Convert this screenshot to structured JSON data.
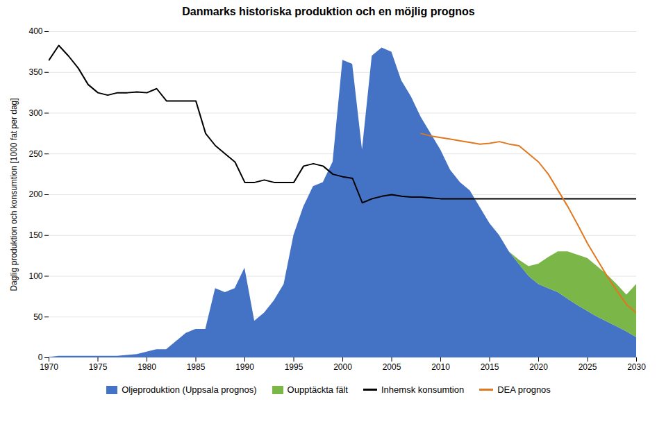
{
  "chart_data": {
    "type": "area",
    "title": "Danmarks historiska produktion och en möjlig prognos",
    "ylabel": "Daglig produktion och konsumtion [1000 fat per dag]",
    "x": [
      1970,
      1971,
      1972,
      1973,
      1974,
      1975,
      1976,
      1977,
      1978,
      1979,
      1980,
      1981,
      1982,
      1983,
      1984,
      1985,
      1986,
      1987,
      1988,
      1989,
      1990,
      1991,
      1992,
      1993,
      1994,
      1995,
      1996,
      1997,
      1998,
      1999,
      2000,
      2001,
      2002,
      2003,
      2004,
      2005,
      2006,
      2007,
      2008,
      2009,
      2010,
      2011,
      2012,
      2013,
      2014,
      2015,
      2016,
      2017,
      2018,
      2019,
      2020,
      2021,
      2022,
      2023,
      2024,
      2025,
      2026,
      2027,
      2028,
      2029,
      2030
    ],
    "xlim": [
      1970,
      2030
    ],
    "xticks": [
      1970,
      1975,
      1980,
      1985,
      1990,
      1995,
      2000,
      2005,
      2010,
      2015,
      2020,
      2025,
      2030
    ],
    "ylim": [
      0,
      400
    ],
    "yticks": [
      0,
      50,
      100,
      150,
      200,
      250,
      300,
      350,
      400
    ],
    "grid": true,
    "legend": "bottom",
    "stacked": true,
    "series": [
      {
        "name": "Oljeproduktion (Uppsala prognos)",
        "type": "area",
        "color": "#4472C4",
        "values": [
          0.5,
          2,
          2,
          2,
          2,
          2,
          2,
          2,
          3,
          4,
          7,
          10,
          10,
          20,
          30,
          35,
          35,
          85,
          80,
          85,
          110,
          45,
          55,
          70,
          90,
          150,
          185,
          210,
          215,
          240,
          365,
          360,
          255,
          370,
          380,
          375,
          340,
          320,
          295,
          275,
          255,
          230,
          215,
          205,
          185,
          165,
          150,
          130,
          115,
          100,
          90,
          85,
          80,
          72,
          64,
          57,
          50,
          44,
          38,
          32,
          25
        ]
      },
      {
        "name": "Oupptäckta fält",
        "type": "area",
        "color": "#7AB648",
        "values": [
          null,
          null,
          null,
          null,
          null,
          null,
          null,
          null,
          null,
          null,
          null,
          null,
          null,
          null,
          null,
          null,
          null,
          null,
          null,
          null,
          null,
          null,
          null,
          null,
          null,
          null,
          null,
          null,
          null,
          null,
          null,
          null,
          null,
          null,
          null,
          null,
          null,
          null,
          null,
          null,
          null,
          null,
          null,
          null,
          null,
          null,
          null,
          0,
          5,
          12,
          25,
          38,
          50,
          58,
          62,
          65,
          62,
          58,
          52,
          45,
          65
        ]
      },
      {
        "name": "Inhemsk konsumtion",
        "type": "line",
        "color": "#000000",
        "values": [
          365,
          383,
          370,
          355,
          335,
          325,
          322,
          325,
          325,
          326,
          325,
          330,
          315,
          315,
          315,
          315,
          275,
          260,
          250,
          240,
          215,
          215,
          218,
          215,
          215,
          215,
          235,
          238,
          235,
          225,
          222,
          220,
          190,
          195,
          198,
          200,
          198,
          197,
          197,
          196,
          195,
          195,
          195,
          195,
          195,
          195,
          195,
          195,
          195,
          195,
          195,
          195,
          195,
          195,
          195,
          195,
          195,
          195,
          195,
          195,
          195
        ]
      },
      {
        "name": "DEA prognos",
        "type": "line",
        "color": "#E07820",
        "values": [
          null,
          null,
          null,
          null,
          null,
          null,
          null,
          null,
          null,
          null,
          null,
          null,
          null,
          null,
          null,
          null,
          null,
          null,
          null,
          null,
          null,
          null,
          null,
          null,
          null,
          null,
          null,
          null,
          null,
          null,
          null,
          null,
          null,
          null,
          null,
          null,
          null,
          null,
          275,
          272,
          270,
          268,
          266,
          264,
          262,
          263,
          265,
          262,
          260,
          250,
          240,
          225,
          205,
          185,
          163,
          140,
          120,
          100,
          82,
          65,
          55
        ]
      }
    ]
  }
}
